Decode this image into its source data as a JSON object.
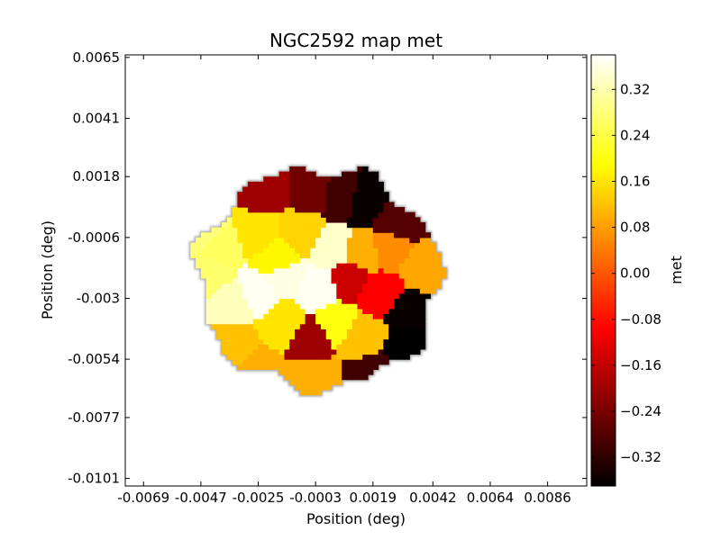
{
  "chart_data": {
    "type": "heatmap",
    "title": "NGC2592 map met",
    "xlabel": "Position (deg)",
    "ylabel": "Position (deg)",
    "x_ticks": [
      "-0.0069",
      "-0.0047",
      "-0.0025",
      "-0.0003",
      "0.0019",
      "0.0042",
      "0.0064",
      "0.0086"
    ],
    "y_ticks": [
      "0.0065",
      "0.0041",
      "0.0018",
      "-0.0006",
      "-0.003",
      "-0.0054",
      "-0.0077",
      "-0.0101"
    ],
    "xlim": [
      -0.0076,
      0.0101
    ],
    "ylim": [
      -0.0104,
      0.0066
    ],
    "colorbar": {
      "label": "met",
      "range": [
        -0.37,
        0.38
      ],
      "colormap": "hot",
      "ticks": [
        "0.32",
        "0.24",
        "0.16",
        "0.08",
        "0.00",
        "−0.08",
        "−0.16",
        "−0.24",
        "−0.32"
      ]
    },
    "grid": false,
    "regions": [
      {
        "x": -0.0045,
        "y": -0.0005,
        "met": 0.28
      },
      {
        "x": -0.004,
        "y": -0.001,
        "met": 0.26
      },
      {
        "x": -0.0044,
        "y": -0.002,
        "met": 0.27
      },
      {
        "x": -0.0035,
        "y": -0.0032,
        "met": 0.33
      },
      {
        "x": -0.0025,
        "y": -0.0028,
        "met": 0.37
      },
      {
        "x": -0.0025,
        "y": -0.0005,
        "met": 0.16
      },
      {
        "x": -0.0018,
        "y": -0.0014,
        "met": 0.18
      },
      {
        "x": -0.0022,
        "y": 0.0013,
        "met": -0.2
      },
      {
        "x": -0.0005,
        "y": 0.0012,
        "met": -0.25
      },
      {
        "x": 0.0007,
        "y": 0.001,
        "met": -0.3
      },
      {
        "x": 0.0016,
        "y": 0.0008,
        "met": -0.36
      },
      {
        "x": 0.0028,
        "y": 0.0,
        "met": -0.28
      },
      {
        "x": -0.0008,
        "y": -0.0004,
        "met": 0.14
      },
      {
        "x": 0.0003,
        "y": -0.001,
        "met": 0.34
      },
      {
        "x": 0.0015,
        "y": -0.0012,
        "met": 0.1
      },
      {
        "x": 0.0025,
        "y": -0.001,
        "met": 0.06
      },
      {
        "x": 0.0038,
        "y": -0.0018,
        "met": 0.09
      },
      {
        "x": -0.0015,
        "y": -0.0022,
        "met": 0.36
      },
      {
        "x": -0.0002,
        "y": -0.0026,
        "met": 0.37
      },
      {
        "x": 0.001,
        "y": -0.0022,
        "met": -0.15
      },
      {
        "x": 0.0022,
        "y": -0.0028,
        "met": -0.1
      },
      {
        "x": 0.0033,
        "y": -0.0035,
        "met": -0.36
      },
      {
        "x": 0.0033,
        "y": -0.005,
        "met": -0.37
      },
      {
        "x": -0.0035,
        "y": -0.0048,
        "met": 0.12
      },
      {
        "x": -0.0025,
        "y": -0.006,
        "met": 0.1
      },
      {
        "x": -0.0015,
        "y": -0.004,
        "met": 0.16
      },
      {
        "x": -0.0005,
        "y": -0.0046,
        "met": -0.2
      },
      {
        "x": 0.0005,
        "y": -0.004,
        "met": 0.2
      },
      {
        "x": 0.0014,
        "y": -0.0045,
        "met": 0.12
      },
      {
        "x": -0.0003,
        "y": -0.0062,
        "met": 0.1
      },
      {
        "x": 0.0018,
        "y": -0.006,
        "met": -0.3
      }
    ]
  }
}
